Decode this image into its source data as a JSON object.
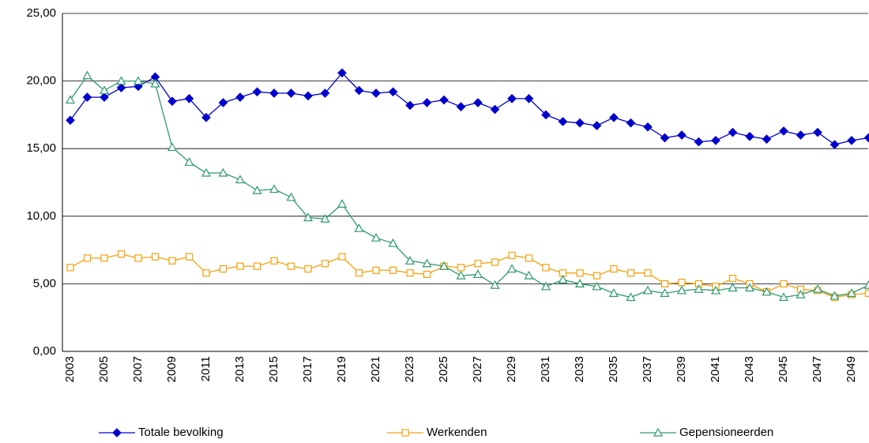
{
  "chart_data": {
    "type": "line",
    "categories": [
      "2003",
      null,
      "2005",
      null,
      "2007",
      null,
      "2009",
      null,
      "2011",
      null,
      "2013",
      null,
      "2015",
      null,
      "2017",
      null,
      "2019",
      null,
      "2021",
      null,
      "2023",
      null,
      "2025",
      null,
      "2027",
      null,
      "2029",
      null,
      "2031",
      null,
      "2033",
      null,
      "2035",
      null,
      "2037",
      null,
      "2039",
      null,
      "2041",
      null,
      "2043",
      null,
      "2045",
      null,
      "2047",
      null,
      "2049",
      null
    ],
    "series": [
      {
        "name": "Totale bevolking",
        "color": "#0000cc",
        "marker": "diamond",
        "values": [
          17.1,
          18.8,
          18.8,
          19.5,
          19.6,
          20.3,
          18.5,
          18.7,
          17.3,
          18.4,
          18.8,
          19.2,
          19.1,
          19.1,
          18.9,
          19.1,
          20.6,
          19.3,
          19.1,
          19.2,
          18.2,
          18.4,
          18.6,
          18.1,
          18.4,
          17.9,
          18.7,
          18.7,
          17.5,
          17.0,
          16.9,
          16.7,
          17.3,
          16.9,
          16.6,
          15.8,
          16.0,
          15.5,
          15.6,
          16.2,
          15.9,
          15.7,
          16.3,
          16.0,
          16.2,
          15.3,
          15.6,
          15.8
        ]
      },
      {
        "name": "Werkenden",
        "color": "#f5a00c",
        "marker": "square",
        "values": [
          6.2,
          6.9,
          6.9,
          7.2,
          6.9,
          7.0,
          6.7,
          7.0,
          5.8,
          6.1,
          6.3,
          6.3,
          6.7,
          6.3,
          6.1,
          6.5,
          7.0,
          5.8,
          6.0,
          6.0,
          5.8,
          5.7,
          6.3,
          6.2,
          6.5,
          6.6,
          7.1,
          6.9,
          6.2,
          5.8,
          5.8,
          5.6,
          6.1,
          5.8,
          5.8,
          5.0,
          5.1,
          5.0,
          4.8,
          5.4,
          5.0,
          4.4,
          5.0,
          4.6,
          4.5,
          4.0,
          4.2,
          4.3
        ]
      },
      {
        "name": "Gepensioneerden",
        "color": "#2e9a6a",
        "marker": "triangle",
        "values": [
          18.6,
          20.4,
          19.3,
          20.0,
          20.0,
          19.8,
          15.1,
          14.0,
          13.2,
          13.2,
          12.7,
          11.9,
          12.0,
          11.4,
          9.9,
          9.8,
          10.9,
          9.1,
          8.4,
          8.0,
          6.7,
          6.5,
          6.3,
          5.6,
          5.7,
          4.9,
          6.1,
          5.6,
          4.8,
          5.3,
          5.0,
          4.8,
          4.3,
          4.0,
          4.5,
          4.3,
          4.5,
          4.6,
          4.5,
          4.7,
          4.7,
          4.4,
          4.0,
          4.2,
          4.6,
          4.1,
          4.3,
          4.9
        ]
      }
    ],
    "ylim": [
      0,
      25
    ],
    "yticks": [
      {
        "value": 0,
        "label": "0,00"
      },
      {
        "value": 5,
        "label": "5,00"
      },
      {
        "value": 10,
        "label": "10,00"
      },
      {
        "value": 15,
        "label": "15,00"
      },
      {
        "value": 20,
        "label": "20,00"
      },
      {
        "value": 25,
        "label": "25,00"
      }
    ],
    "grid": true,
    "legend": "bottom"
  }
}
